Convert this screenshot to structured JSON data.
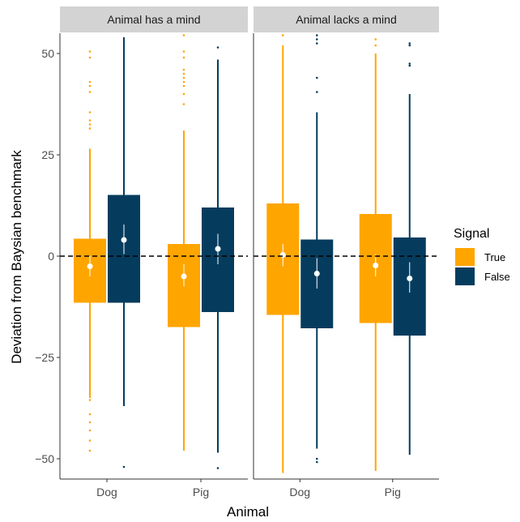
{
  "chart_data": {
    "type": "boxplot",
    "ylabel": "Deviation from Baysian benchmark",
    "xlabel": "Animal",
    "ylim": [
      -55,
      55
    ],
    "yticks": [
      50,
      25,
      0,
      -25,
      -50
    ],
    "ytick_labels": [
      "50",
      "25",
      "0",
      "−25",
      "−50"
    ],
    "reference_line": {
      "y": 0,
      "style": "dashed"
    },
    "legend": {
      "title": "Signal",
      "position": "right",
      "entries": [
        {
          "label": "True",
          "color": "#FFA500"
        },
        {
          "label": "False",
          "color": "#053C5E"
        }
      ]
    },
    "panels": [
      {
        "title": "Animal has a mind",
        "categories": [
          "Dog",
          "Pig"
        ],
        "groups": [
          {
            "category": "Dog",
            "boxes": [
              {
                "signal": "True",
                "q1": -11.5,
                "q3": 4.3,
                "whisker_low": -35,
                "whisker_high": 26.5,
                "mean": -2.5,
                "ci": [
                  -5,
                  0
                ],
                "outliers": [
                  50.5,
                  49,
                  43,
                  42,
                  40.5,
                  35.5,
                  33.5,
                  32.5,
                  31.5,
                  -35.5,
                  -39,
                  -41,
                  -43,
                  -45.5,
                  -48
                ]
              },
              {
                "signal": "False",
                "q1": -11.5,
                "q3": 15.1,
                "whisker_low": -37,
                "whisker_high": 54,
                "mean": 4,
                "ci": [
                  0.5,
                  7.8
                ],
                "outliers": [
                  -52
                ]
              }
            ]
          },
          {
            "category": "Pig",
            "boxes": [
              {
                "signal": "True",
                "q1": -17.5,
                "q3": 3,
                "whisker_low": -48,
                "whisker_high": 31,
                "mean": -5,
                "ci": [
                  -7.5,
                  -2
                ],
                "outliers": [
                  54.5,
                  50.5,
                  49,
                  46,
                  45,
                  44,
                  43,
                  42,
                  40,
                  37.5
                ]
              },
              {
                "signal": "False",
                "q1": -13.8,
                "q3": 12,
                "whisker_low": -48.5,
                "whisker_high": 48.5,
                "mean": 1.8,
                "ci": [
                  -2,
                  5.5
                ],
                "outliers": [
                  51.5,
                  -52.3
                ]
              }
            ]
          }
        ]
      },
      {
        "title": "Animal lacks a mind",
        "categories": [
          "Dog",
          "Pig"
        ],
        "groups": [
          {
            "category": "Dog",
            "boxes": [
              {
                "signal": "True",
                "q1": -14.5,
                "q3": 13,
                "whisker_low": -53.5,
                "whisker_high": 52,
                "mean": 0.3,
                "ci": [
                  -2.5,
                  3
                ],
                "outliers": [
                  54.5
                ]
              },
              {
                "signal": "False",
                "q1": -17.8,
                "q3": 4.1,
                "whisker_low": -47.5,
                "whisker_high": 35.5,
                "mean": -4.3,
                "ci": [
                  -8,
                  -0.5
                ],
                "outliers": [
                  54.5,
                  53.5,
                  52.5,
                  44,
                  40.5,
                  -50,
                  -50.8
                ]
              }
            ]
          },
          {
            "category": "Pig",
            "boxes": [
              {
                "signal": "True",
                "q1": -16.5,
                "q3": 10.4,
                "whisker_low": -53,
                "whisker_high": 50,
                "mean": -2.3,
                "ci": [
                  -5,
                  0.5
                ],
                "outliers": [
                  53.5,
                  52
                ]
              },
              {
                "signal": "False",
                "q1": -19.6,
                "q3": 4.6,
                "whisker_low": -49,
                "whisker_high": 40,
                "mean": -5.5,
                "ci": [
                  -9,
                  -1.5
                ],
                "outliers": [
                  52.5,
                  52,
                  47.5,
                  47
                ]
              }
            ]
          }
        ]
      }
    ]
  }
}
